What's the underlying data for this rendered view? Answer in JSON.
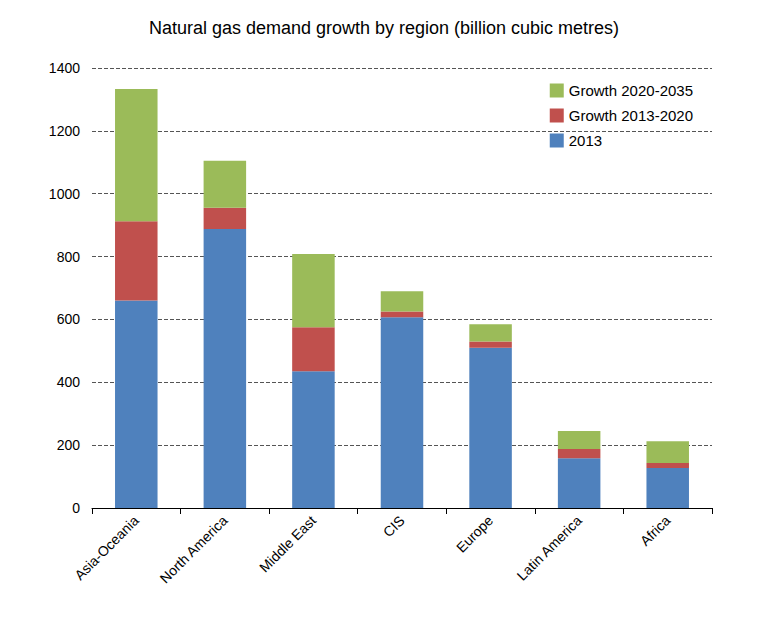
{
  "chart_data": {
    "type": "bar",
    "title": "Natural gas demand growth by region (billion cubic metres)",
    "categories": [
      "Asia-Oceania",
      "North America",
      "Middle East",
      "CIS",
      "Europe",
      "Latin America",
      "Africa"
    ],
    "series": [
      {
        "name": "2013",
        "color": "#4f81bd",
        "values": [
          660,
          888,
          435,
          607,
          510,
          158,
          127
        ]
      },
      {
        "name": "Growth 2013-2020",
        "color": "#c0504d",
        "values": [
          252,
          67,
          140,
          18,
          20,
          30,
          16
        ]
      },
      {
        "name": "Growth 2020-2035",
        "color": "#9bbb59",
        "values": [
          421,
          150,
          233,
          65,
          55,
          57,
          69
        ]
      }
    ],
    "ylim": [
      0,
      1400
    ],
    "yticks": [
      0,
      200,
      400,
      600,
      800,
      1000,
      1200,
      1400
    ],
    "grid": true,
    "stacked": true,
    "legend": "top-right"
  }
}
